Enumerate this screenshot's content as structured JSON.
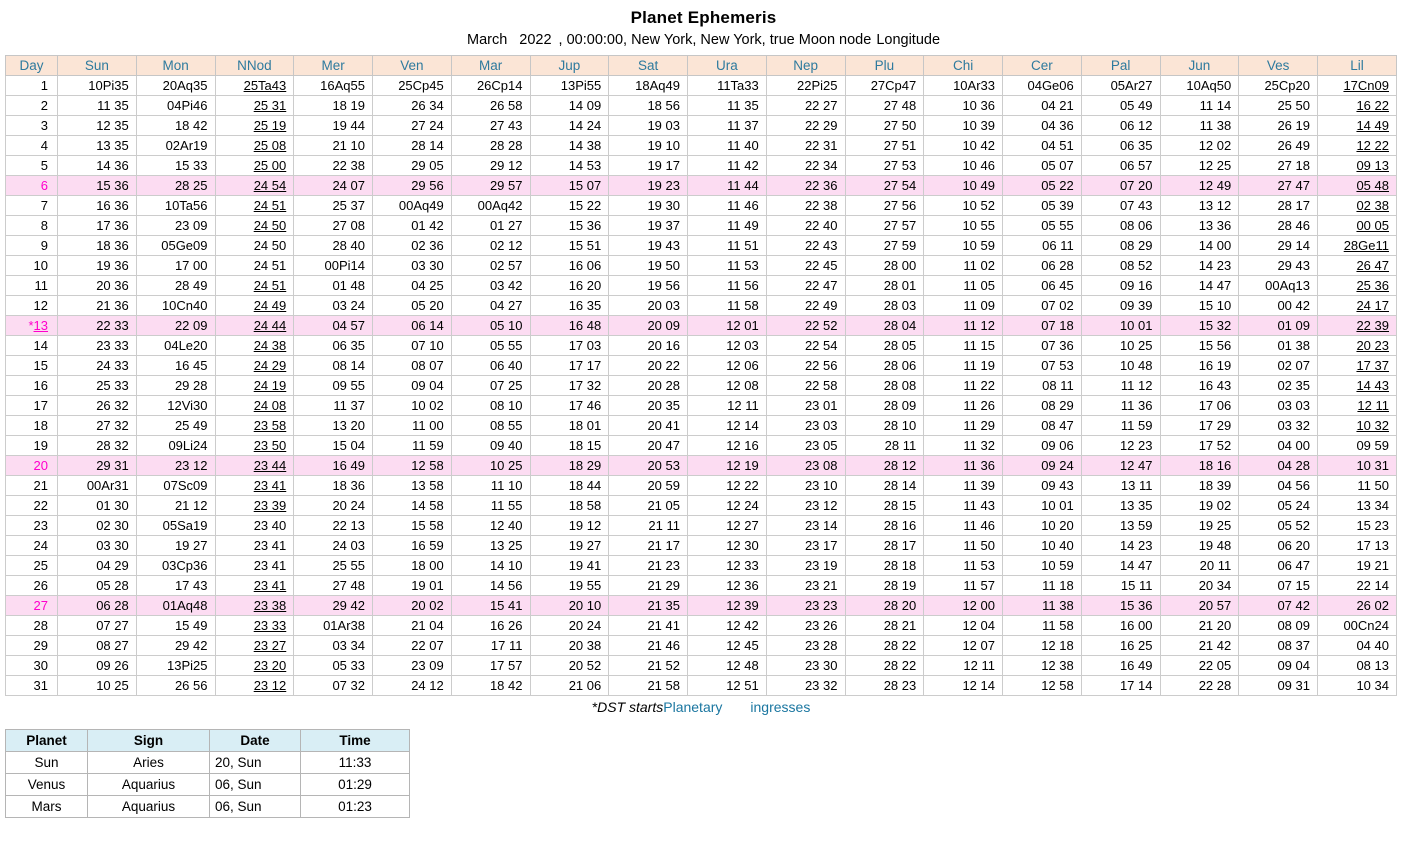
{
  "title": "Planet Ephemeris",
  "subtitle": {
    "month": "March",
    "year": "2022",
    "rest": ", 00:00:00, New York, New York, true Moon node",
    "suffix": "Longitude"
  },
  "colors": {
    "header_bg": "#fbe5d6",
    "header_text": "#2e7a9e",
    "highlight_row_bg": "#fcdcf2",
    "highlight_day_text": "#ff00cc",
    "link_text": "#1a76a0",
    "ingress_header_bg": "#d9eef5"
  },
  "ephemeris": {
    "columns": [
      "Day",
      "Sun",
      "Mon",
      "NNod",
      "Mer",
      "Ven",
      "Mar",
      "Jup",
      "Sat",
      "Ura",
      "Nep",
      "Plu",
      "Chi",
      "Cer",
      "Pal",
      "Jun",
      "Ves",
      "Lil"
    ],
    "rows": [
      {
        "day": "1",
        "cells": [
          "10Pi35",
          "20Aq35",
          "25Ta43",
          "16Aq55",
          "25Cp45",
          "26Cp14",
          "13Pi55",
          "18Aq49",
          "11Ta33",
          "22Pi25",
          "27Cp47",
          "10Ar33",
          "04Ge06",
          "05Ar27",
          "10Aq50",
          "25Cp20",
          "17Cn09"
        ],
        "u": [
          2,
          16
        ]
      },
      {
        "day": "2",
        "cells": [
          "11 35",
          "04Pi46",
          "25 31",
          "18 19",
          "26 34",
          "26 58",
          "14 09",
          "18 56",
          "11 35",
          "22 27",
          "27 48",
          "10 36",
          "04 21",
          "05 49",
          "11 14",
          "25 50",
          "16 22"
        ],
        "u": [
          2,
          16
        ]
      },
      {
        "day": "3",
        "cells": [
          "12 35",
          "18 42",
          "25 19",
          "19 44",
          "27 24",
          "27 43",
          "14 24",
          "19 03",
          "11 37",
          "22 29",
          "27 50",
          "10 39",
          "04 36",
          "06 12",
          "11 38",
          "26 19",
          "14 49"
        ],
        "u": [
          2,
          16
        ]
      },
      {
        "day": "4",
        "cells": [
          "13 35",
          "02Ar19",
          "25 08",
          "21 10",
          "28 14",
          "28 28",
          "14 38",
          "19 10",
          "11 40",
          "22 31",
          "27 51",
          "10 42",
          "04 51",
          "06 35",
          "12 02",
          "26 49",
          "12 22"
        ],
        "u": [
          2,
          16
        ]
      },
      {
        "day": "5",
        "cells": [
          "14 36",
          "15 33",
          "25 00",
          "22 38",
          "29 05",
          "29 12",
          "14 53",
          "19 17",
          "11 42",
          "22 34",
          "27 53",
          "10 46",
          "05 07",
          "06 57",
          "12 25",
          "27 18",
          "09 13"
        ],
        "u": [
          2,
          16
        ]
      },
      {
        "day": "6",
        "hl": true,
        "cells": [
          "15 36",
          "28 25",
          "24 54",
          "24 07",
          "29 56",
          "29 57",
          "15 07",
          "19 23",
          "11 44",
          "22 36",
          "27 54",
          "10 49",
          "05 22",
          "07 20",
          "12 49",
          "27 47",
          "05 48"
        ],
        "u": [
          2,
          16
        ]
      },
      {
        "day": "7",
        "cells": [
          "16 36",
          "10Ta56",
          "24 51",
          "25 37",
          "00Aq49",
          "00Aq42",
          "15 22",
          "19 30",
          "11 46",
          "22 38",
          "27 56",
          "10 52",
          "05 39",
          "07 43",
          "13 12",
          "28 17",
          "02 38"
        ],
        "u": [
          2,
          16
        ]
      },
      {
        "day": "8",
        "cells": [
          "17 36",
          "23 09",
          "24 50",
          "27 08",
          "01 42",
          "01 27",
          "15 36",
          "19 37",
          "11 49",
          "22 40",
          "27 57",
          "10 55",
          "05 55",
          "08 06",
          "13 36",
          "28 46",
          "00 05"
        ],
        "u": [
          2,
          16
        ]
      },
      {
        "day": "9",
        "cells": [
          "18 36",
          "05Ge09",
          "24 50",
          "28 40",
          "02 36",
          "02 12",
          "15 51",
          "19 43",
          "11 51",
          "22 43",
          "27 59",
          "10 59",
          "06 11",
          "08 29",
          "14 00",
          "29 14",
          "28Ge11"
        ],
        "u": [
          16
        ]
      },
      {
        "day": "10",
        "cells": [
          "19 36",
          "17 00",
          "24 51",
          "00Pi14",
          "03 30",
          "02 57",
          "16 06",
          "19 50",
          "11 53",
          "22 45",
          "28 00",
          "11 02",
          "06 28",
          "08 52",
          "14 23",
          "29 43",
          "26 47"
        ],
        "u": [
          16
        ]
      },
      {
        "day": "11",
        "cells": [
          "20 36",
          "28 49",
          "24 51",
          "01 48",
          "04 25",
          "03 42",
          "16 20",
          "19 56",
          "11 56",
          "22 47",
          "28 01",
          "11 05",
          "06 45",
          "09 16",
          "14 47",
          "00Aq13",
          "25 36"
        ],
        "u": [
          2,
          16
        ]
      },
      {
        "day": "12",
        "cells": [
          "21 36",
          "10Cn40",
          "24 49",
          "03 24",
          "05 20",
          "04 27",
          "16 35",
          "20 03",
          "11 58",
          "22 49",
          "28 03",
          "11 09",
          "07 02",
          "09 39",
          "15 10",
          "00 42",
          "24 17"
        ],
        "u": [
          2,
          16
        ]
      },
      {
        "day": "*13",
        "hl": true,
        "day_u": true,
        "cells": [
          "22 33",
          "22 09",
          "24 44",
          "04 57",
          "06 14",
          "05 10",
          "16 48",
          "20 09",
          "12 01",
          "22 52",
          "28 04",
          "11 12",
          "07 18",
          "10 01",
          "15 32",
          "01 09",
          "22 39"
        ],
        "u": [
          2,
          16
        ]
      },
      {
        "day": "14",
        "cells": [
          "23 33",
          "04Le20",
          "24 38",
          "06 35",
          "07 10",
          "05 55",
          "17 03",
          "20 16",
          "12 03",
          "22 54",
          "28 05",
          "11 15",
          "07 36",
          "10 25",
          "15 56",
          "01 38",
          "20 23"
        ],
        "u": [
          2,
          16
        ]
      },
      {
        "day": "15",
        "cells": [
          "24 33",
          "16 45",
          "24 29",
          "08 14",
          "08 07",
          "06 40",
          "17 17",
          "20 22",
          "12 06",
          "22 56",
          "28 06",
          "11 19",
          "07 53",
          "10 48",
          "16 19",
          "02 07",
          "17 37"
        ],
        "u": [
          2,
          16
        ]
      },
      {
        "day": "16",
        "cells": [
          "25 33",
          "29 28",
          "24 19",
          "09 55",
          "09 04",
          "07 25",
          "17 32",
          "20 28",
          "12 08",
          "22 58",
          "28 08",
          "11 22",
          "08 11",
          "11 12",
          "16 43",
          "02 35",
          "14 43"
        ],
        "u": [
          2,
          16
        ]
      },
      {
        "day": "17",
        "cells": [
          "26 32",
          "12Vi30",
          "24 08",
          "11 37",
          "10 02",
          "08 10",
          "17 46",
          "20 35",
          "12 11",
          "23 01",
          "28 09",
          "11 26",
          "08 29",
          "11 36",
          "17 06",
          "03 03",
          "12 11"
        ],
        "u": [
          2,
          16
        ]
      },
      {
        "day": "18",
        "cells": [
          "27 32",
          "25 49",
          "23 58",
          "13 20",
          "11 00",
          "08 55",
          "18 01",
          "20 41",
          "12 14",
          "23 03",
          "28 10",
          "11 29",
          "08 47",
          "11 59",
          "17 29",
          "03 32",
          "10 32"
        ],
        "u": [
          2,
          16
        ]
      },
      {
        "day": "19",
        "cells": [
          "28 32",
          "09Li24",
          "23 50",
          "15 04",
          "11 59",
          "09 40",
          "18 15",
          "20 47",
          "12 16",
          "23 05",
          "28 11",
          "11 32",
          "09 06",
          "12 23",
          "17 52",
          "04 00",
          "09 59"
        ],
        "u": [
          2
        ]
      },
      {
        "day": "20",
        "hl": true,
        "cells": [
          "29 31",
          "23 12",
          "23 44",
          "16 49",
          "12 58",
          "10 25",
          "18 29",
          "20 53",
          "12 19",
          "23 08",
          "28 12",
          "11 36",
          "09 24",
          "12 47",
          "18 16",
          "04 28",
          "10 31"
        ],
        "u": [
          2
        ]
      },
      {
        "day": "21",
        "cells": [
          "00Ar31",
          "07Sc09",
          "23 41",
          "18 36",
          "13 58",
          "11 10",
          "18 44",
          "20 59",
          "12 22",
          "23 10",
          "28 14",
          "11 39",
          "09 43",
          "13 11",
          "18 39",
          "04 56",
          "11 50"
        ],
        "u": [
          2
        ]
      },
      {
        "day": "22",
        "cells": [
          "01 30",
          "21 12",
          "23 39",
          "20 24",
          "14 58",
          "11 55",
          "18 58",
          "21 05",
          "12 24",
          "23 12",
          "28 15",
          "11 43",
          "10 01",
          "13 35",
          "19 02",
          "05 24",
          "13 34"
        ],
        "u": [
          2
        ]
      },
      {
        "day": "23",
        "cells": [
          "02 30",
          "05Sa19",
          "23 40",
          "22 13",
          "15 58",
          "12 40",
          "19 12",
          "21 11",
          "12 27",
          "23 14",
          "28 16",
          "11 46",
          "10 20",
          "13 59",
          "19 25",
          "05 52",
          "15 23"
        ],
        "u": []
      },
      {
        "day": "24",
        "cells": [
          "03 30",
          "19 27",
          "23 41",
          "24 03",
          "16 59",
          "13 25",
          "19 27",
          "21 17",
          "12 30",
          "23 17",
          "28 17",
          "11 50",
          "10 40",
          "14 23",
          "19 48",
          "06 20",
          "17 13"
        ],
        "u": []
      },
      {
        "day": "25",
        "cells": [
          "04 29",
          "03Cp36",
          "23 41",
          "25 55",
          "18 00",
          "14 10",
          "19 41",
          "21 23",
          "12 33",
          "23 19",
          "28 18",
          "11 53",
          "10 59",
          "14 47",
          "20 11",
          "06 47",
          "19 21"
        ],
        "u": []
      },
      {
        "day": "26",
        "cells": [
          "05 28",
          "17 43",
          "23 41",
          "27 48",
          "19 01",
          "14 56",
          "19 55",
          "21 29",
          "12 36",
          "23 21",
          "28 19",
          "11 57",
          "11 18",
          "15 11",
          "20 34",
          "07 15",
          "22 14"
        ],
        "u": [
          2
        ]
      },
      {
        "day": "27",
        "hl": true,
        "cells": [
          "06 28",
          "01Aq48",
          "23 38",
          "29 42",
          "20 02",
          "15 41",
          "20 10",
          "21 35",
          "12 39",
          "23 23",
          "28 20",
          "12 00",
          "11 38",
          "15 36",
          "20 57",
          "07 42",
          "26 02"
        ],
        "u": [
          2
        ]
      },
      {
        "day": "28",
        "cells": [
          "07 27",
          "15 49",
          "23 33",
          "01Ar38",
          "21 04",
          "16 26",
          "20 24",
          "21 41",
          "12 42",
          "23 26",
          "28 21",
          "12 04",
          "11 58",
          "16 00",
          "21 20",
          "08 09",
          "00Cn24"
        ],
        "u": [
          2
        ]
      },
      {
        "day": "29",
        "cells": [
          "08 27",
          "29 42",
          "23 27",
          "03 34",
          "22 07",
          "17 11",
          "20 38",
          "21 46",
          "12 45",
          "23 28",
          "28 22",
          "12 07",
          "12 18",
          "16 25",
          "21 42",
          "08 37",
          "04 40"
        ],
        "u": [
          2
        ]
      },
      {
        "day": "30",
        "cells": [
          "09 26",
          "13Pi25",
          "23 20",
          "05 33",
          "23 09",
          "17 57",
          "20 52",
          "21 52",
          "12 48",
          "23 30",
          "28 22",
          "12 11",
          "12 38",
          "16 49",
          "22 05",
          "09 04",
          "08 13"
        ],
        "u": [
          2
        ]
      },
      {
        "day": "31",
        "cells": [
          "10 25",
          "26 56",
          "23 12",
          "07 32",
          "24 12",
          "18 42",
          "21 06",
          "21 58",
          "12 51",
          "23 32",
          "28 23",
          "12 14",
          "12 58",
          "17 14",
          "22 28",
          "09 31",
          "10 34"
        ],
        "u": [
          2
        ]
      }
    ]
  },
  "footer": {
    "dst_note": "*DST starts",
    "link1": "Planetary",
    "link2": "ingresses"
  },
  "ingresses": {
    "columns": [
      "Planet",
      "Sign",
      "Date",
      "Time"
    ],
    "rows": [
      [
        "Sun",
        "Aries",
        "20, Sun",
        "11:33"
      ],
      [
        "Venus",
        "Aquarius",
        "06, Sun",
        "01:29"
      ],
      [
        "Mars",
        "Aquarius",
        "06, Sun",
        "01:23"
      ]
    ]
  }
}
